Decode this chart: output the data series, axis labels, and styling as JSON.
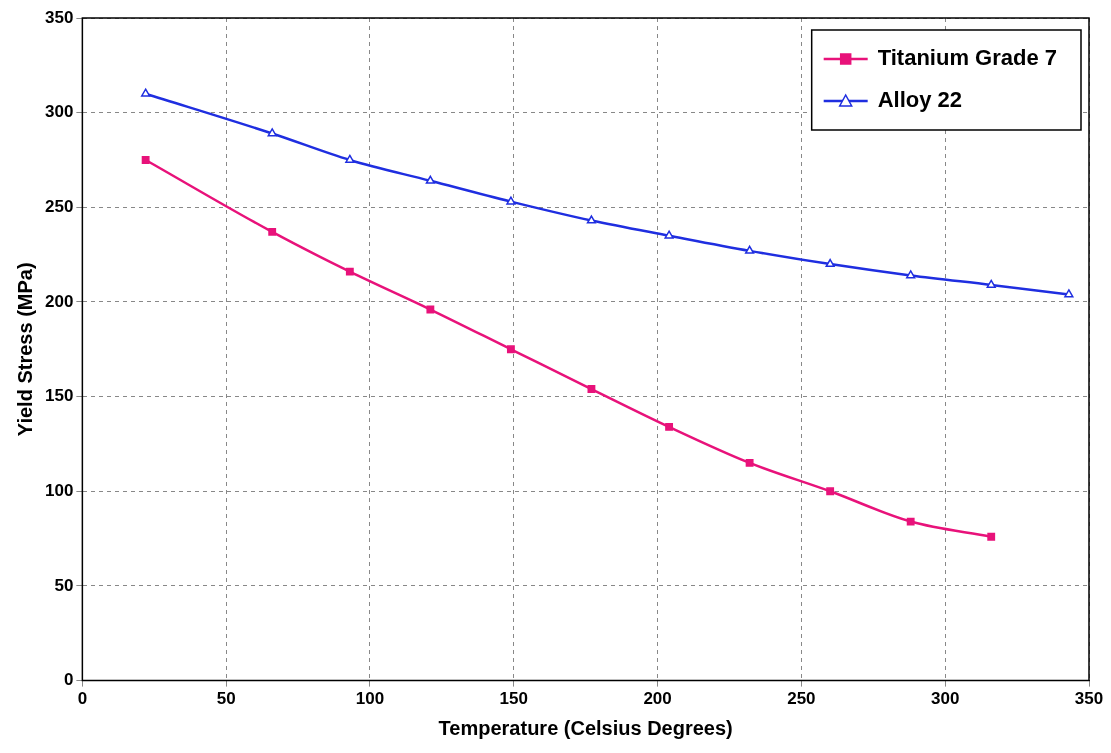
{
  "chart_data": {
    "type": "line",
    "xlabel": "Temperature (Celsius Degrees)",
    "ylabel": "Yield Stress (MPa)",
    "xlim": [
      0,
      350
    ],
    "xticks": [
      0,
      50,
      100,
      150,
      200,
      250,
      300,
      350
    ],
    "ylim": [
      0,
      350
    ],
    "yticks": [
      0,
      50,
      100,
      150,
      200,
      250,
      300,
      350
    ],
    "grid": true,
    "legend": "top right",
    "line_style": "solid",
    "series": [
      {
        "name": "Titanium Grade 7",
        "color": "#e8127a",
        "marker": "square",
        "x": [
          22,
          66,
          93,
          121,
          149,
          177,
          204,
          232,
          260,
          288,
          316
        ],
        "values": [
          275,
          237,
          216,
          196,
          175,
          154,
          134,
          115,
          100,
          84,
          76
        ]
      },
      {
        "name": "Alloy 22",
        "color": "#1f2ee0",
        "marker": "triangle",
        "x": [
          22,
          66,
          93,
          121,
          149,
          177,
          204,
          232,
          260,
          288,
          316,
          343
        ],
        "values": [
          310,
          289,
          275,
          264,
          253,
          243,
          235,
          227,
          220,
          214,
          209,
          204
        ]
      }
    ]
  }
}
